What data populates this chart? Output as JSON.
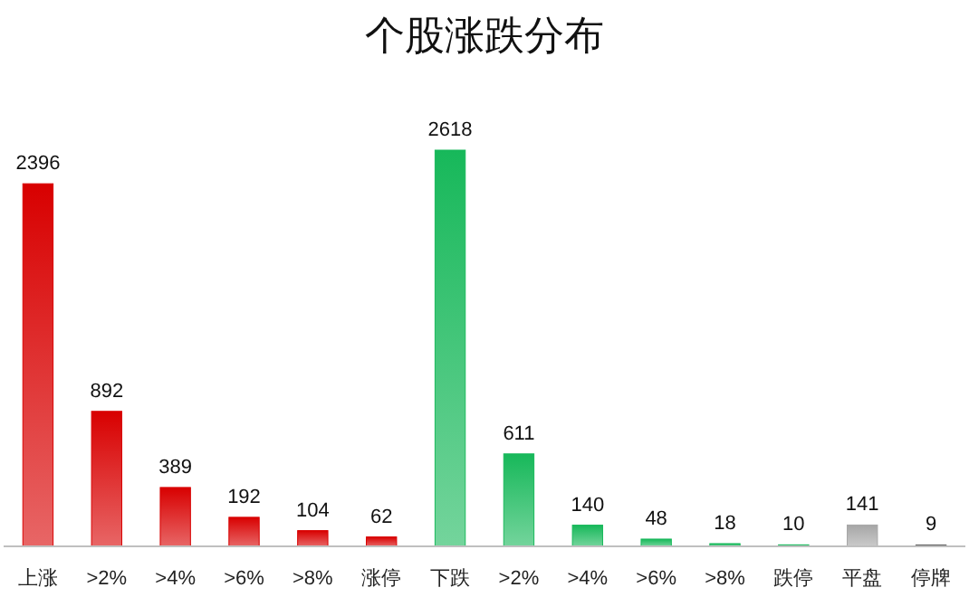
{
  "chart_data": {
    "type": "bar",
    "title": "个股涨跌分布",
    "categories": [
      "上涨",
      ">2%",
      ">4%",
      ">6%",
      ">8%",
      "涨停",
      "下跌",
      ">2%",
      ">4%",
      ">6%",
      ">8%",
      "跌停",
      "平盘",
      "停牌"
    ],
    "values": [
      2396,
      892,
      389,
      192,
      104,
      62,
      2618,
      611,
      140,
      48,
      18,
      10,
      141,
      9
    ],
    "colors": [
      "#d80000",
      "#d80000",
      "#d80000",
      "#d80000",
      "#d80000",
      "#d80000",
      "#17b85a",
      "#17b85a",
      "#17b85a",
      "#17b85a",
      "#17b85a",
      "#17b85a",
      "#a6a6a6",
      "#595959"
    ],
    "data_labels": true
  }
}
